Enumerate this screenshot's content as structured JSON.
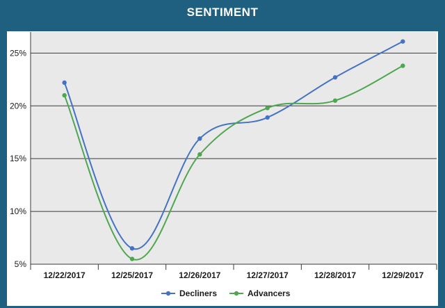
{
  "chart_data": {
    "type": "line",
    "title": "SENTIMENT",
    "xlabel": "",
    "ylabel": "",
    "categories": [
      "12/22/2017",
      "12/25/2017",
      "12/26/2017",
      "12/27/2017",
      "12/28/2017",
      "12/29/2017"
    ],
    "y_ticks": [
      "5%",
      "10%",
      "15%",
      "20%",
      "25%"
    ],
    "ylim": [
      5,
      27
    ],
    "grid": true,
    "legend_position": "bottom",
    "series": [
      {
        "name": "Decliners",
        "color": "#4472c4",
        "values": [
          22.2,
          6.5,
          16.9,
          18.9,
          22.7,
          26.1
        ]
      },
      {
        "name": "Advancers",
        "color": "#4ea64e",
        "values": [
          21.0,
          5.5,
          15.4,
          19.8,
          20.5,
          23.8
        ]
      }
    ],
    "colors": {
      "background": "#1f5f80",
      "plot_area": "#e9e9e9",
      "gridline": "#3a3a3a"
    }
  }
}
